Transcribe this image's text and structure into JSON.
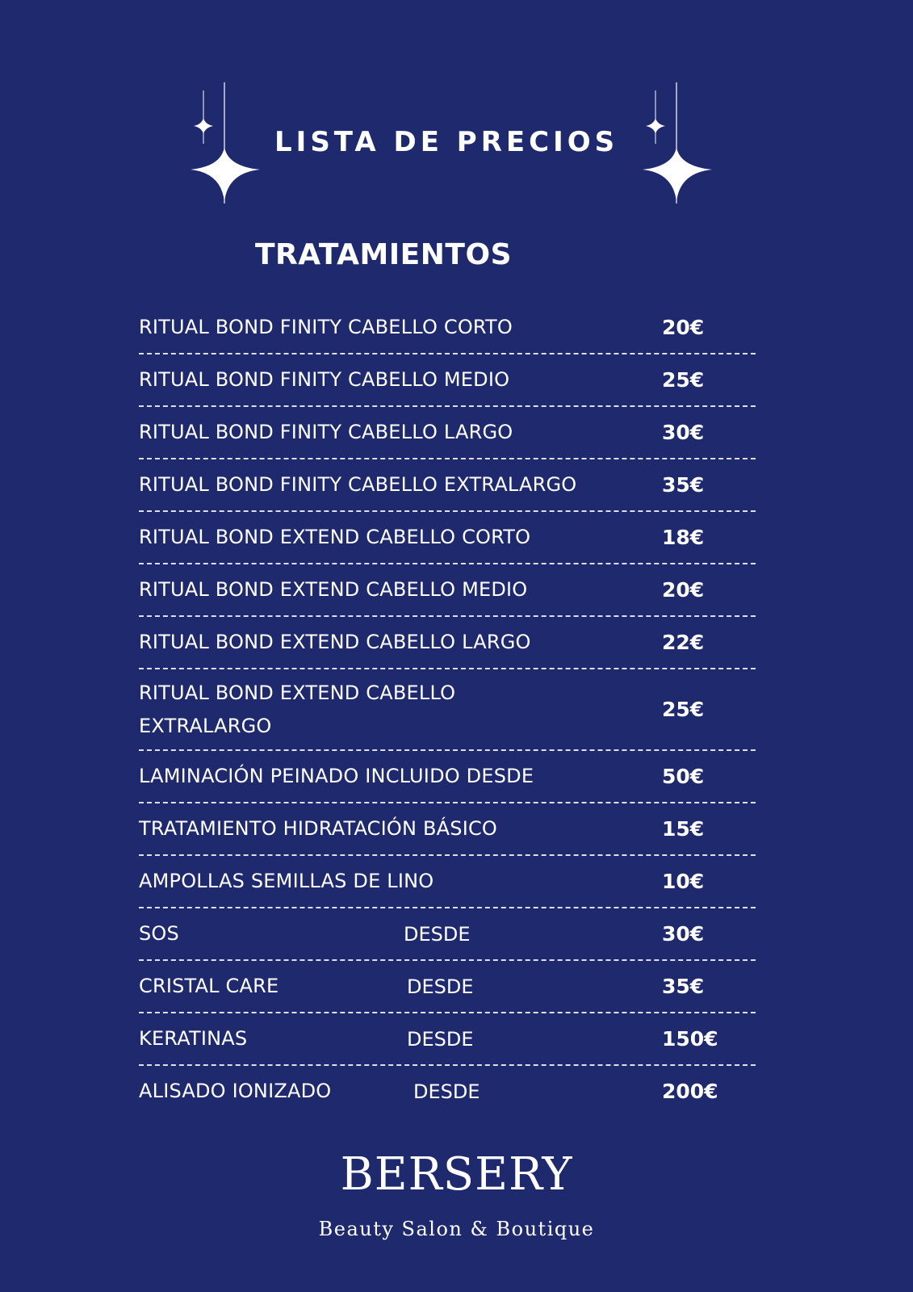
{
  "header": {
    "title": "LISTA DE PRECIOS",
    "section": "TRATAMIENTOS"
  },
  "items": [
    {
      "label": "RITUAL BOND FINITY CABELLO CORTO",
      "price": "20€"
    },
    {
      "label": "RITUAL BOND FINITY CABELLO MEDIO",
      "price": "25€"
    },
    {
      "label": "RITUAL BOND FINITY CABELLO LARGO",
      "price": "30€"
    },
    {
      "label": "RITUAL BOND FINITY CABELLO EXTRALARGO",
      "price": "35€"
    },
    {
      "label": "RITUAL BOND EXTEND CABELLO CORTO",
      "price": "18€"
    },
    {
      "label": "RITUAL BOND EXTEND CABELLO MEDIO",
      "price": "20€"
    },
    {
      "label": "RITUAL BOND EXTEND CABELLO LARGO",
      "price": "22€"
    },
    {
      "label": "RITUAL BOND EXTEND CABELLO EXTRALARGO",
      "price": "25€"
    },
    {
      "label": "LAMINACIÓN  PEINADO INCLUIDO  DESDE",
      "price": "50€"
    },
    {
      "label": "TRATAMIENTO HIDRATACIÓN BÁSICO",
      "price": "15€"
    },
    {
      "label": "AMPOLLAS SEMILLAS DE LINO",
      "price": "10€"
    },
    {
      "label": "SOS",
      "desde": "DESDE",
      "price": "30€"
    },
    {
      "label": "CRISTAL CARE",
      "desde": "DESDE",
      "price": "35€"
    },
    {
      "label": "KERATINAS",
      "desde": "DESDE",
      "price": "150€"
    },
    {
      "label": "ALISADO IONIZADO",
      "desde": "DESDE",
      "price": "200€"
    }
  ],
  "brand": {
    "logo": "BERSERY",
    "tagline": "Beauty Salon & Boutique"
  },
  "colors": {
    "background": "#1f2a6e",
    "text": "#ffffff"
  }
}
